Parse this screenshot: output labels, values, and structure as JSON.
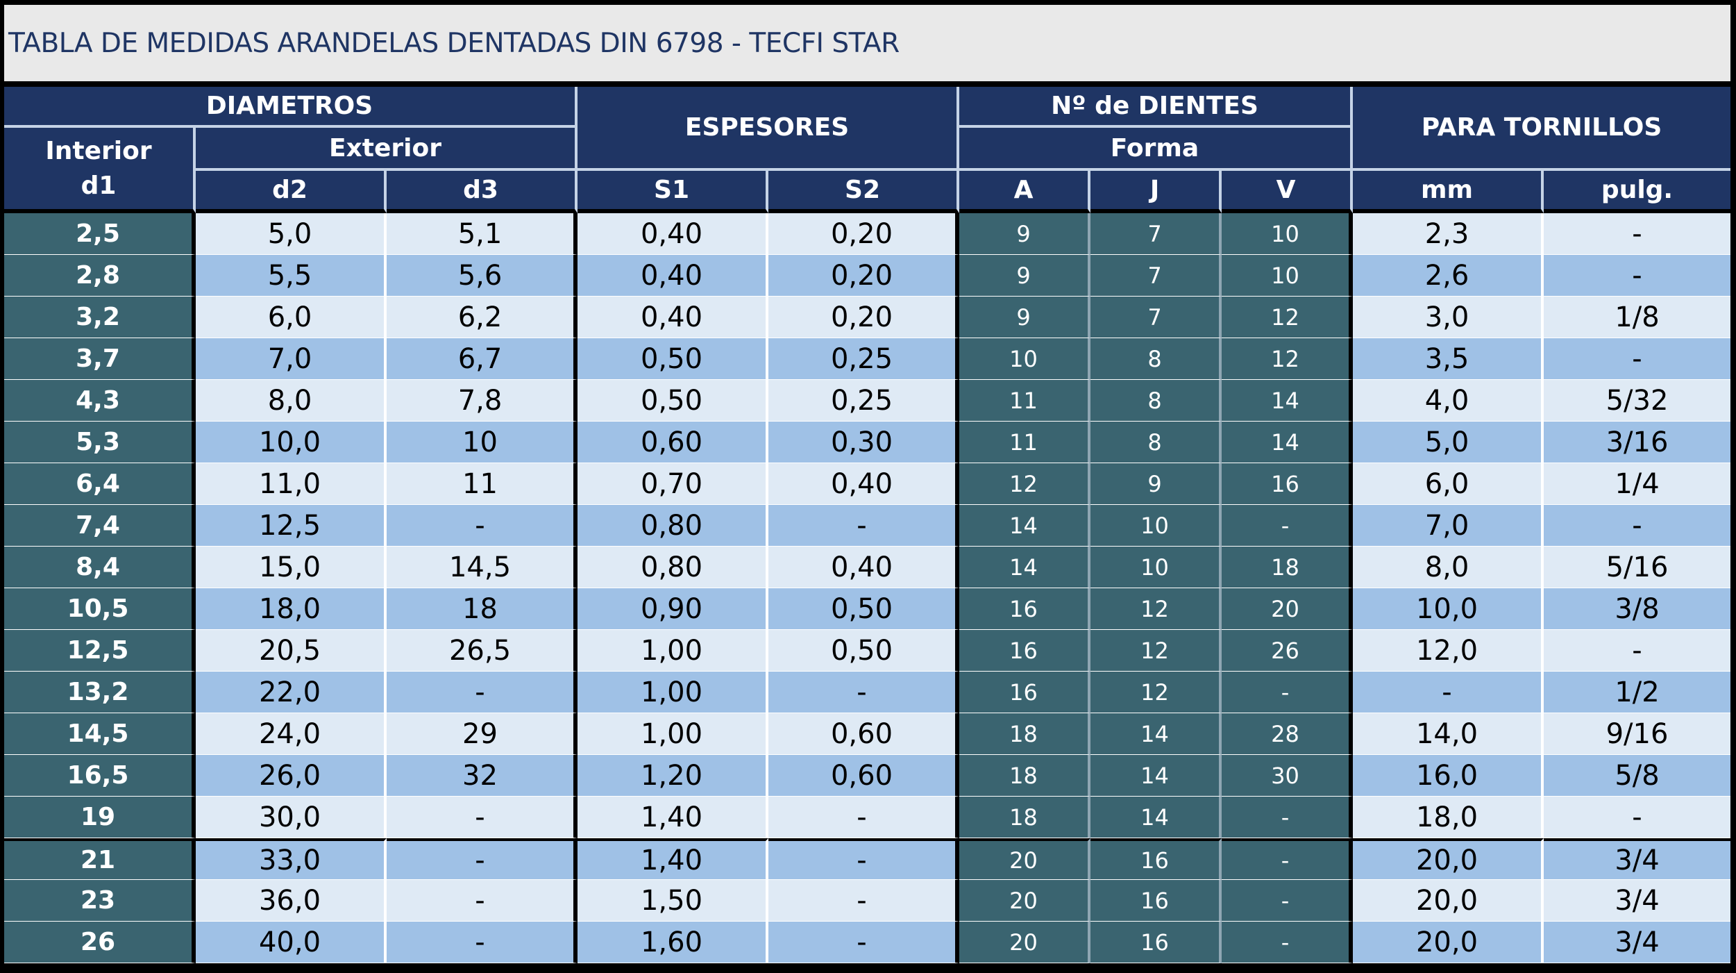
{
  "title": "TABLA DE MEDIDAS ARANDELAS DENTADAS DIN 6798 - TECFI STAR",
  "headers": {
    "diametros": "DIAMETROS",
    "interior": "Interior\nd1",
    "exterior": "Exterior",
    "d2": "d2",
    "d3": "d3",
    "espesores": "ESPESORES",
    "s1": "S1",
    "s2": "S2",
    "dientes": "Nº de DIENTES",
    "forma": "Forma",
    "a": "A",
    "j": "J",
    "v": "V",
    "tornillos": "PARA TORNILLOS",
    "mm": "mm",
    "pulg": "pulg."
  },
  "rows": [
    {
      "d1": "2,5",
      "d2": "5,0",
      "d3": "5,1",
      "s1": "0,40",
      "s2": "0,20",
      "a": "9",
      "j": "7",
      "v": "10",
      "mm": "2,3",
      "pulg": "-"
    },
    {
      "d1": "2,8",
      "d2": "5,5",
      "d3": "5,6",
      "s1": "0,40",
      "s2": "0,20",
      "a": "9",
      "j": "7",
      "v": "10",
      "mm": "2,6",
      "pulg": "-"
    },
    {
      "d1": "3,2",
      "d2": "6,0",
      "d3": "6,2",
      "s1": "0,40",
      "s2": "0,20",
      "a": "9",
      "j": "7",
      "v": "12",
      "mm": "3,0",
      "pulg": "1/8"
    },
    {
      "d1": "3,7",
      "d2": "7,0",
      "d3": "6,7",
      "s1": "0,50",
      "s2": "0,25",
      "a": "10",
      "j": "8",
      "v": "12",
      "mm": "3,5",
      "pulg": "-"
    },
    {
      "d1": "4,3",
      "d2": "8,0",
      "d3": "7,8",
      "s1": "0,50",
      "s2": "0,25",
      "a": "11",
      "j": "8",
      "v": "14",
      "mm": "4,0",
      "pulg": "5/32"
    },
    {
      "d1": "5,3",
      "d2": "10,0",
      "d3": "10",
      "s1": "0,60",
      "s2": "0,30",
      "a": "11",
      "j": "8",
      "v": "14",
      "mm": "5,0",
      "pulg": "3/16"
    },
    {
      "d1": "6,4",
      "d2": "11,0",
      "d3": "11",
      "s1": "0,70",
      "s2": "0,40",
      "a": "12",
      "j": "9",
      "v": "16",
      "mm": "6,0",
      "pulg": "1/4"
    },
    {
      "d1": "7,4",
      "d2": "12,5",
      "d3": "-",
      "s1": "0,80",
      "s2": "-",
      "a": "14",
      "j": "10",
      "v": "-",
      "mm": "7,0",
      "pulg": "-"
    },
    {
      "d1": "8,4",
      "d2": "15,0",
      "d3": "14,5",
      "s1": "0,80",
      "s2": "0,40",
      "a": "14",
      "j": "10",
      "v": "18",
      "mm": "8,0",
      "pulg": "5/16"
    },
    {
      "d1": "10,5",
      "d2": "18,0",
      "d3": "18",
      "s1": "0,90",
      "s2": "0,50",
      "a": "16",
      "j": "12",
      "v": "20",
      "mm": "10,0",
      "pulg": "3/8"
    },
    {
      "d1": "12,5",
      "d2": "20,5",
      "d3": "26,5",
      "s1": "1,00",
      "s2": "0,50",
      "a": "16",
      "j": "12",
      "v": "26",
      "mm": "12,0",
      "pulg": "-"
    },
    {
      "d1": "13,2",
      "d2": "22,0",
      "d3": "-",
      "s1": "1,00",
      "s2": "-",
      "a": "16",
      "j": "12",
      "v": "-",
      "mm": "-",
      "pulg": "1/2"
    },
    {
      "d1": "14,5",
      "d2": "24,0",
      "d3": "29",
      "s1": "1,00",
      "s2": "0,60",
      "a": "18",
      "j": "14",
      "v": "28",
      "mm": "14,0",
      "pulg": "9/16"
    },
    {
      "d1": "16,5",
      "d2": "26,0",
      "d3": "32",
      "s1": "1,20",
      "s2": "0,60",
      "a": "18",
      "j": "14",
      "v": "30",
      "mm": "16,0",
      "pulg": "5/8"
    },
    {
      "d1": "19",
      "d2": "30,0",
      "d3": "-",
      "s1": "1,40",
      "s2": "-",
      "a": "18",
      "j": "14",
      "v": "-",
      "mm": "18,0",
      "pulg": "-"
    },
    {
      "d1": "21",
      "d2": "33,0",
      "d3": "-",
      "s1": "1,40",
      "s2": "-",
      "a": "20",
      "j": "16",
      "v": "-",
      "mm": "20,0",
      "pulg": "3/4"
    },
    {
      "d1": "23",
      "d2": "36,0",
      "d3": "-",
      "s1": "1,50",
      "s2": "-",
      "a": "20",
      "j": "16",
      "v": "-",
      "mm": "20,0",
      "pulg": "3/4"
    },
    {
      "d1": "26",
      "d2": "40,0",
      "d3": "-",
      "s1": "1,60",
      "s2": "-",
      "a": "20",
      "j": "16",
      "v": "-",
      "mm": "20,0",
      "pulg": "3/4"
    }
  ],
  "colors": {
    "header_bg": "#1f3564",
    "teal_cell": "#3a6470",
    "light_row": "#dfeaf5",
    "dark_row": "#9fc1e6",
    "title_text": "#1f3564"
  }
}
